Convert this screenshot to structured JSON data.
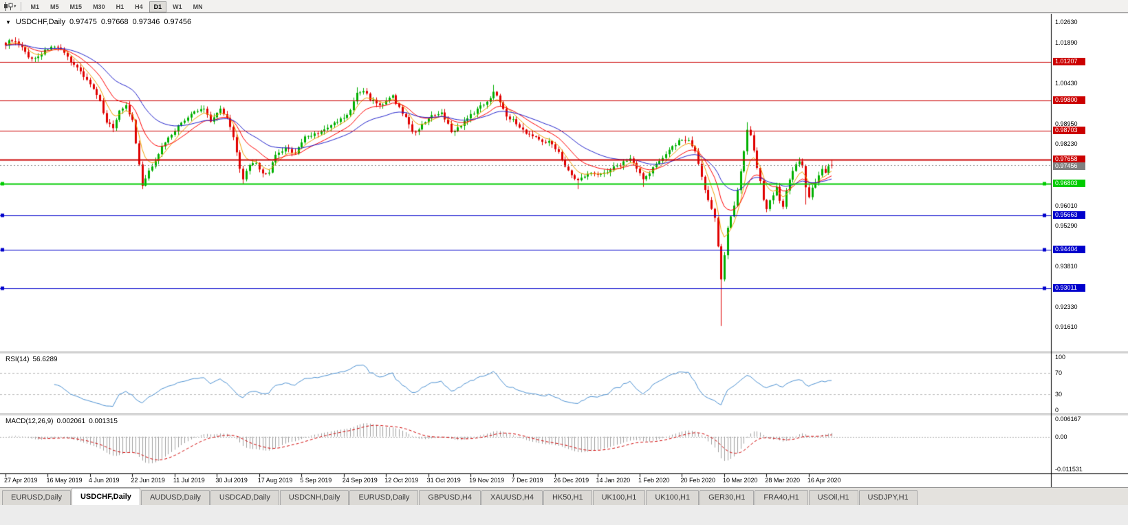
{
  "toolbar": {
    "timeframes": [
      "M1",
      "M5",
      "M15",
      "M30",
      "H1",
      "H4",
      "D1",
      "W1",
      "MN"
    ],
    "active_timeframe": "D1"
  },
  "chart_header": {
    "symbol_period": "USDCHF,Daily",
    "open": "0.97475",
    "high": "0.97668",
    "low": "0.97346",
    "close": "0.97456"
  },
  "price_axis": {
    "plain_ticks": [
      "1.02630",
      "1.01890",
      "1.00430",
      "0.98950",
      "0.98230",
      "0.96010",
      "0.95290",
      "0.93810",
      "0.92330",
      "0.91610"
    ],
    "levels": [
      {
        "label": "1.01207",
        "color": "#CC0000",
        "width": 1,
        "handles": false
      },
      {
        "label": "0.99800",
        "color": "#CC0000",
        "width": 1,
        "handles": false
      },
      {
        "label": "0.98703",
        "color": "#CC0000",
        "width": 1,
        "handles": false
      },
      {
        "label": "0.97658",
        "color": "#CC0000",
        "width": 2,
        "handles": false
      },
      {
        "label": "0.96803",
        "color": "#00CC00",
        "width": 2,
        "handles": true
      },
      {
        "label": "0.95663",
        "color": "#0000CC",
        "width": 1,
        "handles": true
      },
      {
        "label": "0.94404",
        "color": "#0000CC",
        "width": 1,
        "handles": true
      },
      {
        "label": "0.93011",
        "color": "#0000CC",
        "width": 1,
        "handles": true
      }
    ],
    "current": {
      "label": "0.97456",
      "color": "#808080"
    }
  },
  "x_axis": {
    "labels": [
      "27 Apr 2019",
      "16 May 2019",
      "4 Jun 2019",
      "22 Jun 2019",
      "11 Jul 2019",
      "30 Jul 2019",
      "17 Aug 2019",
      "5 Sep 2019",
      "24 Sep 2019",
      "12 Oct 2019",
      "31 Oct 2019",
      "19 Nov 2019",
      "7 Dec 2019",
      "26 Dec 2019",
      "14 Jan 2020",
      "1 Feb 2020",
      "20 Feb 2020",
      "10 Mar 2020",
      "28 Mar 2020",
      "16 Apr 2020"
    ]
  },
  "rsi_panel": {
    "name": "RSI(14)",
    "value": "56.6289",
    "ticks": [
      "100",
      "70",
      "30",
      "0"
    ],
    "guides": [
      70,
      30
    ]
  },
  "macd_panel": {
    "name": "MACD(12,26,9)",
    "value_1": "0.002061",
    "value_2": "0.001315",
    "ticks": [
      "0.006167",
      "0.00",
      "-0.011531"
    ]
  },
  "tabs": {
    "items": [
      "EURUSD,Daily",
      "USDCHF,Daily",
      "AUDUSD,Daily",
      "USDCAD,Daily",
      "USDCNH,Daily",
      "EURUSD,Daily",
      "GBPUSD,H4",
      "XAUUSD,H4",
      "HK50,H1",
      "UK100,H1",
      "UK100,H1",
      "GER30,H1",
      "FRA40,H1",
      "USOil,H1",
      "USDJPY,H1"
    ],
    "active_index": 1
  },
  "colors": {
    "up": "#00B000",
    "down": "#E00000",
    "rsi": "#4A90D2",
    "macd_hist": "#A0A0A0",
    "macd_signal": "#D00000",
    "current_price": "#888888",
    "guide": "#B9B9B9"
  },
  "chart_data": {
    "type": "candlestick",
    "symbol": "USDCHF",
    "period": "Daily",
    "visible_bars": 255,
    "label_bar_interval": 13,
    "price_view": {
      "top": 1.0294,
      "bottom": 0.9075
    },
    "ma": [
      {
        "period": 6,
        "color": "#F0A000"
      },
      {
        "period": 14,
        "color": "#FF0000"
      },
      {
        "period": 30,
        "color": "#2222CC"
      }
    ],
    "rsi": {
      "period": 14
    },
    "macd": {
      "fast": 12,
      "slow": 26,
      "signal": 9,
      "range": [
        -0.0127,
        0.0072
      ]
    },
    "close_anchors": [
      [
        0,
        1.0185
      ],
      [
        2,
        1.02
      ],
      [
        5,
        1.0168
      ],
      [
        8,
        1.0128
      ],
      [
        11,
        1.015
      ],
      [
        14,
        1.0178
      ],
      [
        17,
        1.016
      ],
      [
        20,
        1.0125
      ],
      [
        23,
        1.0085
      ],
      [
        26,
        1.004
      ],
      [
        29,
        0.9975
      ],
      [
        31,
        0.9905
      ],
      [
        33,
        0.988
      ],
      [
        35,
        0.9948
      ],
      [
        37,
        0.996
      ],
      [
        39,
        0.9905
      ],
      [
        41,
        0.9745
      ],
      [
        42,
        0.9672
      ],
      [
        44,
        0.9722
      ],
      [
        46,
        0.9768
      ],
      [
        49,
        0.9832
      ],
      [
        54,
        0.99
      ],
      [
        58,
        0.9938
      ],
      [
        61,
        0.9952
      ],
      [
        63,
        0.9908
      ],
      [
        66,
        0.995
      ],
      [
        68,
        0.9922
      ],
      [
        70,
        0.9845
      ],
      [
        72,
        0.9732
      ],
      [
        73,
        0.97
      ],
      [
        75,
        0.9742
      ],
      [
        77,
        0.9755
      ],
      [
        79,
        0.9712
      ],
      [
        81,
        0.9725
      ],
      [
        83,
        0.978
      ],
      [
        86,
        0.9805
      ],
      [
        89,
        0.9792
      ],
      [
        92,
        0.9848
      ],
      [
        95,
        0.986
      ],
      [
        98,
        0.9872
      ],
      [
        101,
        0.9898
      ],
      [
        104,
        0.9918
      ],
      [
        106,
        0.9942
      ],
      [
        108,
        1.0008
      ],
      [
        110,
        1.0015
      ],
      [
        112,
        0.9988
      ],
      [
        114,
        0.9972
      ],
      [
        116,
        0.9962
      ],
      [
        118,
        0.9988
      ],
      [
        119,
        0.9995
      ],
      [
        121,
        0.9952
      ],
      [
        123,
        0.9918
      ],
      [
        125,
        0.9872
      ],
      [
        126,
        0.9862
      ],
      [
        128,
        0.9898
      ],
      [
        131,
        0.9922
      ],
      [
        134,
        0.9932
      ],
      [
        136,
        0.9892
      ],
      [
        137,
        0.9865
      ],
      [
        139,
        0.9882
      ],
      [
        141,
        0.9902
      ],
      [
        144,
        0.9938
      ],
      [
        147,
        0.9968
      ],
      [
        149,
        0.9992
      ],
      [
        150,
        1.0012
      ],
      [
        152,
        0.9978
      ],
      [
        154,
        0.9928
      ],
      [
        156,
        0.9908
      ],
      [
        157,
        0.9898
      ],
      [
        159,
        0.9872
      ],
      [
        161,
        0.9858
      ],
      [
        164,
        0.984
      ],
      [
        167,
        0.983
      ],
      [
        170,
        0.9798
      ],
      [
        172,
        0.9742
      ],
      [
        174,
        0.9708
      ],
      [
        176,
        0.969
      ],
      [
        178,
        0.9706
      ],
      [
        180,
        0.9724
      ],
      [
        183,
        0.9714
      ],
      [
        186,
        0.9732
      ],
      [
        189,
        0.975
      ],
      [
        192,
        0.9772
      ],
      [
        194,
        0.9738
      ],
      [
        196,
        0.9694
      ],
      [
        198,
        0.9718
      ],
      [
        200,
        0.975
      ],
      [
        203,
        0.9792
      ],
      [
        206,
        0.9824
      ],
      [
        208,
        0.984
      ],
      [
        210,
        0.9832
      ],
      [
        212,
        0.9792
      ],
      [
        214,
        0.9702
      ],
      [
        216,
        0.9618
      ],
      [
        218,
        0.9562
      ],
      [
        219,
        0.9455
      ],
      [
        220,
        0.933
      ],
      [
        221,
        0.942
      ],
      [
        222,
        0.9522
      ],
      [
        224,
        0.9602
      ],
      [
        226,
        0.9722
      ],
      [
        227,
        0.9802
      ],
      [
        228,
        0.9878
      ],
      [
        229,
        0.9855
      ],
      [
        230,
        0.98
      ],
      [
        231,
        0.9742
      ],
      [
        232,
        0.9692
      ],
      [
        233,
        0.9622
      ],
      [
        234,
        0.9588
      ],
      [
        236,
        0.9642
      ],
      [
        237,
        0.9672
      ],
      [
        238,
        0.9614
      ],
      [
        239,
        0.9602
      ],
      [
        240,
        0.9656
      ],
      [
        241,
        0.97
      ],
      [
        242,
        0.9722
      ],
      [
        243,
        0.9748
      ],
      [
        244,
        0.9763
      ],
      [
        245,
        0.9746
      ],
      [
        246,
        0.9662
      ],
      [
        247,
        0.9636
      ],
      [
        248,
        0.9662
      ],
      [
        249,
        0.9686
      ],
      [
        250,
        0.9706
      ],
      [
        251,
        0.9731
      ],
      [
        252,
        0.9722
      ],
      [
        253,
        0.9746
      ],
      [
        254,
        0.97456
      ]
    ],
    "wick_overrides": [
      [
        33,
        "low",
        0.9866
      ],
      [
        42,
        "low",
        0.966
      ],
      [
        73,
        "low",
        0.9678
      ],
      [
        108,
        "high",
        1.0028
      ],
      [
        150,
        "high",
        1.0037
      ],
      [
        176,
        "low",
        0.966
      ],
      [
        196,
        "low",
        0.9668
      ],
      [
        220,
        "low",
        0.9165
      ],
      [
        228,
        "high",
        0.9902
      ],
      [
        246,
        "low",
        0.9604
      ]
    ]
  }
}
